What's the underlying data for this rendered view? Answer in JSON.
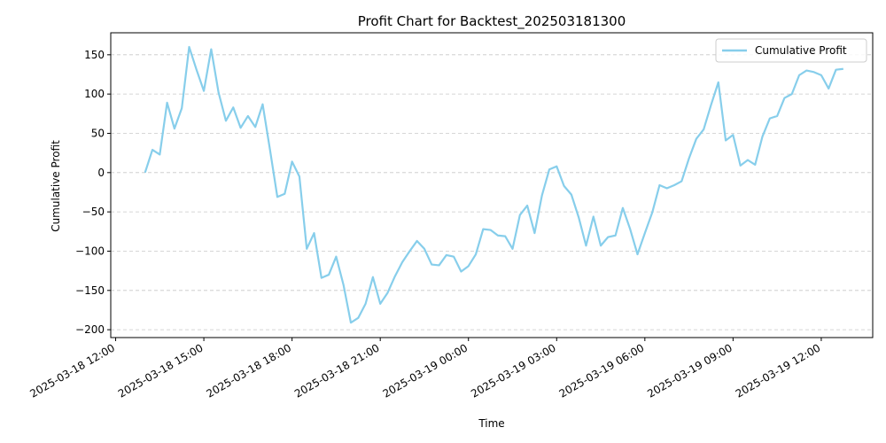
{
  "chart_data": {
    "type": "line",
    "title": "Profit Chart for Backtest_202503181300",
    "xlabel": "Time",
    "ylabel": "Cumulative Profit",
    "grid": "y-axis dashed",
    "legend_position": "top-right",
    "xlim": [
      "2025-03-18 11:50",
      "2025-03-19 13:45"
    ],
    "ylim": [
      -210,
      178
    ],
    "x_ticks": [
      {
        "time": "2025-03-18 12:00",
        "label": "2025-03-18 12:00"
      },
      {
        "time": "2025-03-18 15:00",
        "label": "2025-03-18 15:00"
      },
      {
        "time": "2025-03-18 18:00",
        "label": "2025-03-18 18:00"
      },
      {
        "time": "2025-03-18 21:00",
        "label": "2025-03-18 21:00"
      },
      {
        "time": "2025-03-19 00:00",
        "label": "2025-03-19 00:00"
      },
      {
        "time": "2025-03-19 03:00",
        "label": "2025-03-19 03:00"
      },
      {
        "time": "2025-03-19 06:00",
        "label": "2025-03-19 06:00"
      },
      {
        "time": "2025-03-19 09:00",
        "label": "2025-03-19 09:00"
      },
      {
        "time": "2025-03-19 12:00",
        "label": "2025-03-19 12:00"
      }
    ],
    "y_ticks": [
      150,
      100,
      50,
      0,
      -50,
      -100,
      -150,
      -200
    ],
    "series": [
      {
        "name": "Cumulative Profit",
        "color": "#87ceeb",
        "points": [
          [
            "2025-03-18 13:00",
            0
          ],
          [
            "2025-03-18 13:15",
            29
          ],
          [
            "2025-03-18 13:30",
            23
          ],
          [
            "2025-03-18 13:45",
            89
          ],
          [
            "2025-03-18 14:00",
            56
          ],
          [
            "2025-03-18 14:15",
            82
          ],
          [
            "2025-03-18 14:30",
            160
          ],
          [
            "2025-03-18 14:45",
            131
          ],
          [
            "2025-03-18 15:00",
            104
          ],
          [
            "2025-03-18 15:15",
            157
          ],
          [
            "2025-03-18 15:30",
            102
          ],
          [
            "2025-03-18 15:45",
            66
          ],
          [
            "2025-03-18 16:00",
            83
          ],
          [
            "2025-03-18 16:15",
            57
          ],
          [
            "2025-03-18 16:30",
            72
          ],
          [
            "2025-03-18 16:45",
            58
          ],
          [
            "2025-03-18 17:00",
            87
          ],
          [
            "2025-03-18 17:15",
            29
          ],
          [
            "2025-03-18 17:30",
            -31
          ],
          [
            "2025-03-18 17:45",
            -27
          ],
          [
            "2025-03-18 18:00",
            14
          ],
          [
            "2025-03-18 18:15",
            -5
          ],
          [
            "2025-03-18 18:30",
            -97
          ],
          [
            "2025-03-18 18:45",
            -77
          ],
          [
            "2025-03-18 19:00",
            -134
          ],
          [
            "2025-03-18 19:15",
            -130
          ],
          [
            "2025-03-18 19:30",
            -107
          ],
          [
            "2025-03-18 19:45",
            -143
          ],
          [
            "2025-03-18 20:00",
            -191
          ],
          [
            "2025-03-18 20:15",
            -185
          ],
          [
            "2025-03-18 20:30",
            -167
          ],
          [
            "2025-03-18 20:45",
            -133
          ],
          [
            "2025-03-18 21:00",
            -167
          ],
          [
            "2025-03-18 21:15",
            -153
          ],
          [
            "2025-03-18 21:30",
            -132
          ],
          [
            "2025-03-18 21:45",
            -114
          ],
          [
            "2025-03-18 22:00",
            -100
          ],
          [
            "2025-03-18 22:15",
            -87
          ],
          [
            "2025-03-18 22:30",
            -97
          ],
          [
            "2025-03-18 22:45",
            -117
          ],
          [
            "2025-03-18 23:00",
            -118
          ],
          [
            "2025-03-18 23:15",
            -105
          ],
          [
            "2025-03-18 23:30",
            -107
          ],
          [
            "2025-03-18 23:45",
            -126
          ],
          [
            "2025-03-19 00:00",
            -119
          ],
          [
            "2025-03-19 00:15",
            -104
          ],
          [
            "2025-03-19 00:30",
            -72
          ],
          [
            "2025-03-19 00:45",
            -73
          ],
          [
            "2025-03-19 01:00",
            -80
          ],
          [
            "2025-03-19 01:15",
            -81
          ],
          [
            "2025-03-19 01:30",
            -97
          ],
          [
            "2025-03-19 01:45",
            -54
          ],
          [
            "2025-03-19 02:00",
            -42
          ],
          [
            "2025-03-19 02:15",
            -77
          ],
          [
            "2025-03-19 02:30",
            -29
          ],
          [
            "2025-03-19 02:45",
            4
          ],
          [
            "2025-03-19 03:00",
            8
          ],
          [
            "2025-03-19 03:15",
            -17
          ],
          [
            "2025-03-19 03:30",
            -28
          ],
          [
            "2025-03-19 03:45",
            -57
          ],
          [
            "2025-03-19 04:00",
            -93
          ],
          [
            "2025-03-19 04:15",
            -56
          ],
          [
            "2025-03-19 04:30",
            -93
          ],
          [
            "2025-03-19 04:45",
            -82
          ],
          [
            "2025-03-19 05:00",
            -80
          ],
          [
            "2025-03-19 05:15",
            -45
          ],
          [
            "2025-03-19 05:30",
            -72
          ],
          [
            "2025-03-19 05:45",
            -104
          ],
          [
            "2025-03-19 06:00",
            -77
          ],
          [
            "2025-03-19 06:15",
            -51
          ],
          [
            "2025-03-19 06:30",
            -16
          ],
          [
            "2025-03-19 06:45",
            -20
          ],
          [
            "2025-03-19 07:00",
            -16
          ],
          [
            "2025-03-19 07:15",
            -11
          ],
          [
            "2025-03-19 07:30",
            18
          ],
          [
            "2025-03-19 07:45",
            43
          ],
          [
            "2025-03-19 08:00",
            55
          ],
          [
            "2025-03-19 08:15",
            86
          ],
          [
            "2025-03-19 08:30",
            115
          ],
          [
            "2025-03-19 08:45",
            41
          ],
          [
            "2025-03-19 09:00",
            48
          ],
          [
            "2025-03-19 09:15",
            9
          ],
          [
            "2025-03-19 09:30",
            16
          ],
          [
            "2025-03-19 09:45",
            10
          ],
          [
            "2025-03-19 10:00",
            46
          ],
          [
            "2025-03-19 10:15",
            69
          ],
          [
            "2025-03-19 10:30",
            72
          ],
          [
            "2025-03-19 10:45",
            95
          ],
          [
            "2025-03-19 11:00",
            100
          ],
          [
            "2025-03-19 11:15",
            124
          ],
          [
            "2025-03-19 11:30",
            130
          ],
          [
            "2025-03-19 11:45",
            128
          ],
          [
            "2025-03-19 12:00",
            124
          ],
          [
            "2025-03-19 12:15",
            107
          ],
          [
            "2025-03-19 12:30",
            131
          ],
          [
            "2025-03-19 12:45",
            132
          ]
        ]
      }
    ]
  }
}
